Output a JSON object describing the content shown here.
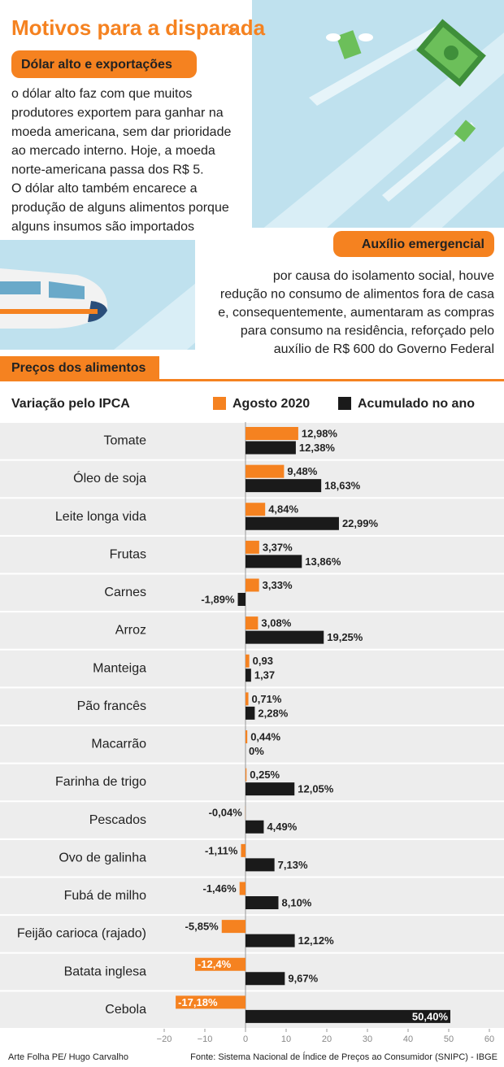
{
  "header": {
    "title": "Motivos para a disparada",
    "arrow": ">"
  },
  "sections": [
    {
      "heading": "Dólar alto e exportações",
      "text": [
        "o dólar alto faz com que muitos",
        "produtores exportem para ganhar na",
        "moeda americana, sem dar prioridade",
        "ao mercado interno. Hoje, a moeda",
        "norte-americana passa dos R$ 5.",
        "O dólar alto também encarece a",
        "produção de alguns alimentos porque",
        "alguns insumos são importados"
      ]
    },
    {
      "heading": "Auxílio emergencial",
      "text": [
        "por causa do isolamento social, houve",
        "redução no consumo de alimentos fora de casa",
        "e, consequentemente, aumentaram as compras",
        "para consumo na residência, reforçado pelo",
        "auxílio de R$ 600 do Governo Federal"
      ]
    }
  ],
  "chart_data": {
    "type": "hbar",
    "title": "Preços dos alimentos",
    "subtitle": "Variação pelo IPCA",
    "categories": [
      "Tomate",
      "Óleo de soja",
      "Leite longa vida",
      "Frutas",
      "Carnes",
      "Arroz",
      "Manteiga",
      "Pão francês",
      "Macarrão",
      "Farinha de trigo",
      "Pescados",
      "Ovo de galinha",
      "Fubá de milho",
      "Feijão carioca (rajado)",
      "Batata inglesa",
      "Cebola"
    ],
    "series": [
      {
        "name": "Agosto 2020",
        "color": "#f58220",
        "values": [
          12.98,
          9.48,
          4.84,
          3.37,
          3.33,
          3.08,
          0.93,
          0.71,
          0.44,
          0.25,
          -0.04,
          -1.11,
          -1.46,
          -5.85,
          -12.4,
          -17.18
        ],
        "value_labels": [
          "12,98%",
          "9,48%",
          "4,84%",
          "3,37%",
          "3,33%",
          "3,08%",
          "0,93",
          "0,71%",
          "0,44%",
          "0,25%",
          "-0,04%",
          "-1,11%",
          "-1,46%",
          "-5,85%",
          "-12,4%",
          "-17,18%"
        ]
      },
      {
        "name": "Acumulado no ano",
        "color": "#1a1a1a",
        "values": [
          12.38,
          18.63,
          22.99,
          13.86,
          -1.89,
          19.25,
          1.37,
          2.28,
          0,
          12.05,
          4.49,
          7.13,
          8.1,
          12.12,
          9.67,
          50.4
        ],
        "value_labels": [
          "12,38%",
          "18,63%",
          "22,99%",
          "13,86%",
          "-1,89%",
          "19,25%",
          "1,37",
          "2,28%",
          "0%",
          "12,05%",
          "4,49%",
          "7,13%",
          "8,10%",
          "12,12%",
          "9,67%",
          "50,40%"
        ]
      }
    ],
    "xlim": [
      -20,
      60
    ],
    "xticks": [
      {
        "value": -20,
        "label": "−20"
      },
      {
        "value": -10,
        "label": "−10"
      },
      0,
      10,
      20,
      30,
      40,
      50,
      60
    ]
  },
  "footer": {
    "credit": "Arte Folha PE/ Hugo Carvalho",
    "source": "Fonte: Sistema Nacional de Índice de Preços ao Consumidor (SNIPC) - IBGE"
  }
}
